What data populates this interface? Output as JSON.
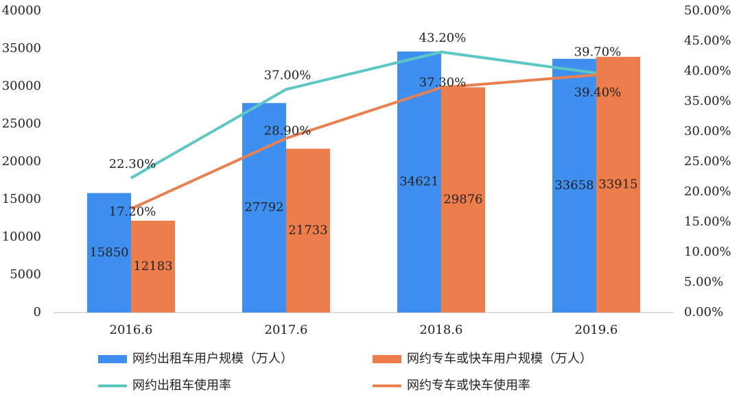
{
  "chart_data": {
    "type": "bar",
    "categories": [
      "2016.6",
      "2017.6",
      "2018.6",
      "2019.6"
    ],
    "series": [
      {
        "name": "网约出租车用户规模（万人）",
        "type": "bar",
        "color": "#3e8ff0",
        "values": [
          15850,
          27792,
          34621,
          33658
        ]
      },
      {
        "name": "网约专车或快车用户规模（万人）",
        "type": "bar",
        "color": "#ed7d4b",
        "values": [
          12183,
          21733,
          29876,
          33915
        ]
      },
      {
        "name": "网约出租车使用率",
        "type": "line",
        "axis": "y2",
        "color": "#5dc7c4",
        "values": [
          22.3,
          37.0,
          43.2,
          39.7
        ],
        "value_labels": [
          "22.30%",
          "37.00%",
          "43.20%",
          "39.70%"
        ]
      },
      {
        "name": "网约专车或快车使用率",
        "type": "line",
        "axis": "y2",
        "color": "#e8804f",
        "values": [
          17.2,
          28.9,
          37.3,
          39.4
        ],
        "value_labels": [
          "17.20%",
          "28.90%",
          "37.30%",
          "39.40%"
        ]
      }
    ],
    "ylim": [
      0,
      40000
    ],
    "yticks": [
      0,
      5000,
      10000,
      15000,
      20000,
      25000,
      30000,
      35000,
      40000
    ],
    "y2lim": [
      0,
      50
    ],
    "y2ticks": [
      {
        "value": 0,
        "label": "0.00%"
      },
      {
        "value": 5,
        "label": "5.00%"
      },
      {
        "value": 10,
        "label": "10.00%"
      },
      {
        "value": 15,
        "label": "15.00%"
      },
      {
        "value": 20,
        "label": "20.00%"
      },
      {
        "value": 25,
        "label": "25.00%"
      },
      {
        "value": 30,
        "label": "30.00%"
      },
      {
        "value": 35,
        "label": "35.00%"
      },
      {
        "value": 40,
        "label": "40.00%"
      },
      {
        "value": 45,
        "label": "45.00%"
      },
      {
        "value": 50,
        "label": "50.00%"
      }
    ],
    "grid": false
  }
}
